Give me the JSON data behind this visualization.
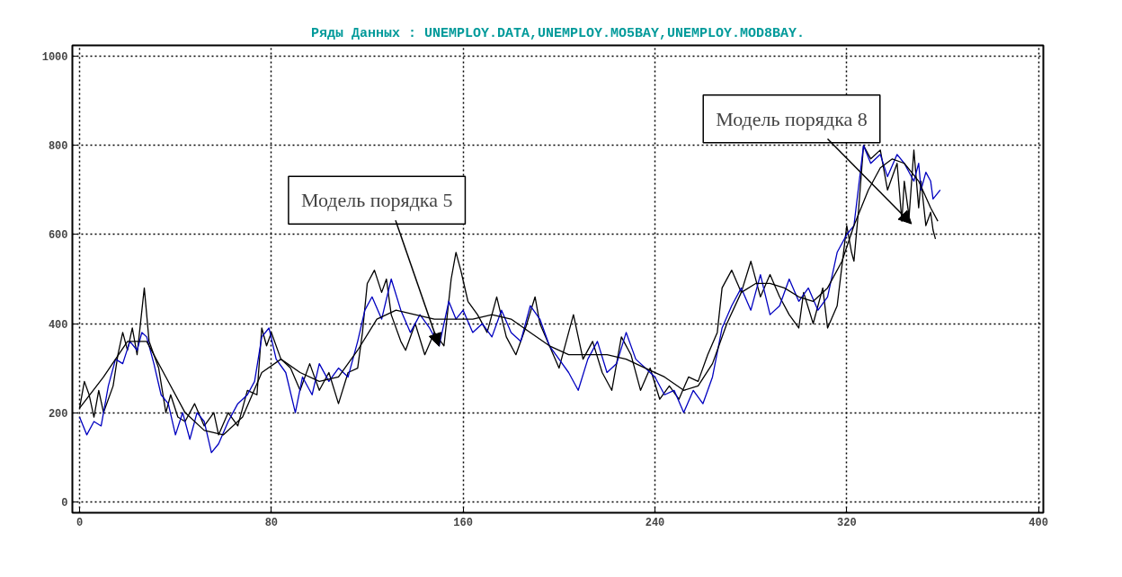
{
  "chart_data": {
    "type": "line",
    "title": "Ряды Данных : UNEMPLOY.DATA,UNEMPLOY.MO5BAY,UNEMPLOY.MOD8BAY.",
    "xlim": [
      -3,
      402
    ],
    "ylim": [
      -25,
      1025
    ],
    "xticks": [
      0,
      80,
      160,
      240,
      320,
      400
    ],
    "yticks": [
      0,
      200,
      400,
      600,
      800,
      1000
    ],
    "grid": true,
    "series": [
      {
        "color": "#000000",
        "x": [
          0,
          2,
          4,
          6,
          8,
          10,
          14,
          16,
          18,
          20,
          22,
          24,
          26,
          27,
          29,
          31,
          33,
          36,
          38,
          41,
          44,
          48,
          52,
          56,
          58,
          62,
          66,
          70,
          74,
          76,
          78,
          80,
          84,
          88,
          92,
          96,
          100,
          104,
          108,
          112,
          116,
          118,
          120,
          123,
          126,
          128,
          130,
          134,
          136,
          140,
          144,
          148,
          152,
          155,
          157,
          159,
          162,
          166,
          170,
          174,
          178,
          182,
          186,
          190,
          192,
          196,
          200,
          204,
          206,
          210,
          214,
          218,
          222,
          226,
          230,
          234,
          238,
          242,
          246,
          250,
          254,
          258,
          262,
          266,
          268,
          272,
          276,
          280,
          284,
          288,
          292,
          296,
          300,
          302,
          306,
          310,
          312,
          316,
          320,
          322,
          323,
          325,
          327,
          330,
          334,
          337,
          341,
          343,
          344,
          346,
          348,
          350,
          351,
          353,
          355,
          356,
          357
        ],
        "values": [
          210,
          270,
          240,
          190,
          250,
          200,
          260,
          330,
          380,
          340,
          390,
          330,
          430,
          480,
          360,
          330,
          300,
          200,
          240,
          190,
          180,
          220,
          170,
          200,
          150,
          200,
          170,
          250,
          240,
          390,
          350,
          380,
          320,
          300,
          250,
          310,
          250,
          290,
          220,
          290,
          300,
          380,
          490,
          520,
          470,
          500,
          420,
          360,
          340,
          400,
          330,
          380,
          350,
          500,
          560,
          520,
          450,
          420,
          380,
          460,
          370,
          330,
          390,
          460,
          400,
          350,
          300,
          380,
          420,
          320,
          360,
          290,
          250,
          370,
          330,
          250,
          300,
          230,
          260,
          230,
          280,
          270,
          330,
          380,
          480,
          520,
          470,
          540,
          460,
          510,
          460,
          420,
          390,
          470,
          400,
          480,
          390,
          440,
          620,
          560,
          540,
          660,
          800,
          770,
          790,
          700,
          760,
          630,
          720,
          640,
          790,
          660,
          720,
          620,
          650,
          610,
          590
        ]
      },
      {
        "color": "#0000c0",
        "x": [
          0,
          3,
          6,
          9,
          12,
          15,
          18,
          21,
          24,
          26,
          28,
          31,
          34,
          37,
          40,
          43,
          46,
          49,
          52,
          55,
          58,
          62,
          66,
          70,
          73,
          76,
          79,
          82,
          86,
          90,
          93,
          97,
          100,
          104,
          108,
          112,
          116,
          119,
          122,
          126,
          130,
          134,
          138,
          142,
          146,
          150,
          154,
          157,
          160,
          164,
          168,
          172,
          176,
          180,
          184,
          188,
          192,
          196,
          200,
          204,
          208,
          212,
          216,
          220,
          224,
          228,
          232,
          236,
          240,
          244,
          248,
          252,
          256,
          260,
          264,
          268,
          272,
          276,
          280,
          284,
          288,
          292,
          296,
          300,
          304,
          308,
          312,
          316,
          320,
          323,
          325,
          327,
          330,
          334,
          337,
          341,
          344,
          348,
          350,
          351,
          353,
          355,
          356,
          359
        ],
        "values": [
          190,
          150,
          180,
          170,
          260,
          320,
          310,
          360,
          340,
          380,
          370,
          310,
          240,
          220,
          150,
          200,
          140,
          200,
          180,
          110,
          130,
          180,
          220,
          240,
          270,
          370,
          390,
          320,
          290,
          200,
          280,
          240,
          310,
          270,
          300,
          280,
          360,
          430,
          460,
          410,
          500,
          430,
          380,
          420,
          390,
          350,
          450,
          410,
          430,
          380,
          400,
          370,
          430,
          380,
          360,
          440,
          410,
          350,
          320,
          290,
          250,
          320,
          360,
          290,
          310,
          380,
          320,
          300,
          280,
          240,
          250,
          200,
          250,
          220,
          280,
          390,
          440,
          480,
          430,
          510,
          420,
          440,
          500,
          450,
          480,
          430,
          460,
          560,
          600,
          620,
          710,
          800,
          760,
          780,
          730,
          780,
          760,
          720,
          760,
          700,
          740,
          720,
          680,
          700
        ]
      },
      {
        "color": "#000000",
        "x": [
          0,
          10,
          20,
          28,
          36,
          44,
          52,
          60,
          68,
          76,
          84,
          92,
          100,
          108,
          116,
          124,
          132,
          140,
          148,
          156,
          164,
          172,
          180,
          188,
          196,
          204,
          212,
          220,
          228,
          236,
          244,
          252,
          258,
          264,
          270,
          276,
          282,
          288,
          294,
          300,
          306,
          312,
          318,
          323,
          329,
          334,
          339,
          344,
          350,
          355,
          358
        ],
        "values": [
          210,
          280,
          360,
          360,
          280,
          200,
          160,
          150,
          190,
          290,
          320,
          290,
          270,
          280,
          340,
          410,
          430,
          420,
          410,
          410,
          410,
          420,
          410,
          380,
          350,
          330,
          330,
          330,
          320,
          300,
          280,
          250,
          260,
          310,
          400,
          470,
          490,
          490,
          480,
          460,
          450,
          480,
          540,
          620,
          700,
          750,
          770,
          760,
          720,
          660,
          630
        ]
      }
    ],
    "annotations": [
      {
        "text": "Модель порядка 5",
        "x": 150,
        "y": 349
      },
      {
        "text": "Модель порядка 8",
        "x": 347,
        "y": 624
      }
    ]
  }
}
